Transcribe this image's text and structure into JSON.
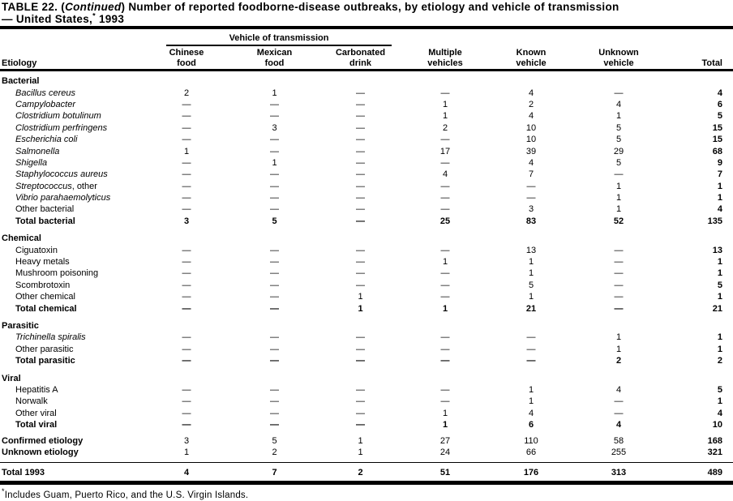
{
  "title": {
    "prefix": "TABLE 22. (",
    "continued": "Continued",
    "rest": ") Number of reported foodborne-disease outbreaks, by etiology and vehicle of transmission",
    "line2_text": "— United States,",
    "line2_sup": "*",
    "line2_year": " 1993"
  },
  "header": {
    "etiology_label": "Etiology",
    "vehicle_span_label": "Vehicle of transmission",
    "columns": [
      {
        "line1": "Chinese",
        "line2": "food"
      },
      {
        "line1": "Mexican",
        "line2": "food"
      },
      {
        "line1": "Carbonated",
        "line2": "drink"
      },
      {
        "line1": "Multiple",
        "line2": "vehicles"
      },
      {
        "line1": "Known",
        "line2": "vehicle"
      },
      {
        "line1": "Unknown",
        "line2": "vehicle"
      },
      {
        "line1": "",
        "line2": "Total"
      }
    ]
  },
  "rows": [
    {
      "type": "section",
      "label": "Bacterial"
    },
    {
      "type": "item",
      "italic": true,
      "label": "Bacillus cereus",
      "cells": [
        "2",
        "1",
        "—",
        "—",
        "4",
        "—",
        "4"
      ]
    },
    {
      "type": "item",
      "italic": true,
      "label": "Campylobacter",
      "cells": [
        "—",
        "—",
        "—",
        "1",
        "2",
        "4",
        "6"
      ]
    },
    {
      "type": "item",
      "italic": true,
      "label": "Clostridium botulinum",
      "cells": [
        "—",
        "—",
        "—",
        "1",
        "4",
        "1",
        "5"
      ]
    },
    {
      "type": "item",
      "italic": true,
      "label": "Clostridium perfringens",
      "cells": [
        "—",
        "3",
        "—",
        "2",
        "10",
        "5",
        "15"
      ]
    },
    {
      "type": "item",
      "italic": true,
      "label": "Escherichia coli",
      "cells": [
        "—",
        "—",
        "—",
        "—",
        "10",
        "5",
        "15"
      ]
    },
    {
      "type": "item",
      "italic": true,
      "label": "Salmonella",
      "cells": [
        "1",
        "—",
        "—",
        "17",
        "39",
        "29",
        "68"
      ]
    },
    {
      "type": "item",
      "italic": true,
      "label": "Shigella",
      "cells": [
        "—",
        "1",
        "—",
        "—",
        "4",
        "5",
        "9"
      ]
    },
    {
      "type": "item",
      "italic": true,
      "label": "Staphylococcus aureus",
      "cells": [
        "—",
        "—",
        "—",
        "4",
        "7",
        "—",
        "7"
      ]
    },
    {
      "type": "item",
      "italic": true,
      "label": "Streptococcus",
      "suffix": ", other",
      "cells": [
        "—",
        "—",
        "—",
        "—",
        "—",
        "1",
        "1"
      ]
    },
    {
      "type": "item",
      "italic": true,
      "label": "Vibrio parahaemolyticus",
      "cells": [
        "—",
        "—",
        "—",
        "—",
        "—",
        "1",
        "1"
      ]
    },
    {
      "type": "item",
      "label": "Other bacterial",
      "cells": [
        "—",
        "—",
        "—",
        "—",
        "3",
        "1",
        "4"
      ]
    },
    {
      "type": "total",
      "label": "Total bacterial",
      "cells": [
        "3",
        "5",
        "—",
        "25",
        "83",
        "52",
        "135"
      ]
    },
    {
      "type": "section",
      "label": "Chemical"
    },
    {
      "type": "item",
      "label": "Ciguatoxin",
      "cells": [
        "—",
        "—",
        "—",
        "—",
        "13",
        "—",
        "13"
      ]
    },
    {
      "type": "item",
      "label": "Heavy metals",
      "cells": [
        "—",
        "—",
        "—",
        "1",
        "1",
        "—",
        "1"
      ]
    },
    {
      "type": "item",
      "label": "Mushroom poisoning",
      "cells": [
        "—",
        "—",
        "—",
        "—",
        "1",
        "—",
        "1"
      ]
    },
    {
      "type": "item",
      "label": "Scombrotoxin",
      "cells": [
        "—",
        "—",
        "—",
        "—",
        "5",
        "—",
        "5"
      ]
    },
    {
      "type": "item",
      "label": "Other chemical",
      "cells": [
        "—",
        "—",
        "1",
        "—",
        "1",
        "—",
        "1"
      ]
    },
    {
      "type": "total",
      "label": "Total chemical",
      "cells": [
        "—",
        "—",
        "1",
        "1",
        "21",
        "—",
        "21"
      ]
    },
    {
      "type": "section",
      "label": "Parasitic"
    },
    {
      "type": "item",
      "italic": true,
      "label": "Trichinella spiralis",
      "cells": [
        "—",
        "—",
        "—",
        "—",
        "—",
        "1",
        "1"
      ]
    },
    {
      "type": "item",
      "label": "Other parasitic",
      "cells": [
        "—",
        "—",
        "—",
        "—",
        "—",
        "1",
        "1"
      ]
    },
    {
      "type": "total",
      "label": "Total parasitic",
      "cells": [
        "—",
        "—",
        "—",
        "—",
        "—",
        "2",
        "2"
      ]
    },
    {
      "type": "section",
      "label": "Viral"
    },
    {
      "type": "item",
      "label": "Hepatitis A",
      "cells": [
        "—",
        "—",
        "—",
        "—",
        "1",
        "4",
        "5"
      ]
    },
    {
      "type": "item",
      "label": "Norwalk",
      "cells": [
        "—",
        "—",
        "—",
        "—",
        "1",
        "—",
        "1"
      ]
    },
    {
      "type": "item",
      "label": "Other viral",
      "cells": [
        "—",
        "—",
        "—",
        "1",
        "4",
        "—",
        "4"
      ]
    },
    {
      "type": "total",
      "label": "Total viral",
      "cells": [
        "—",
        "—",
        "—",
        "1",
        "6",
        "4",
        "10"
      ]
    },
    {
      "type": "summary",
      "label": "Confirmed etiology",
      "cells": [
        "3",
        "5",
        "1",
        "27",
        "110",
        "58",
        "168"
      ]
    },
    {
      "type": "summary",
      "label": "Unknown etiology",
      "cells": [
        "1",
        "2",
        "1",
        "24",
        "66",
        "255",
        "321"
      ]
    },
    {
      "type": "grand",
      "label": "Total 1993",
      "cells": [
        "4",
        "7",
        "2",
        "51",
        "176",
        "313",
        "489"
      ]
    }
  ],
  "footnote": {
    "sup": "*",
    "text": "Includes Guam, Puerto Rico, and the U.S. Virgin Islands."
  }
}
